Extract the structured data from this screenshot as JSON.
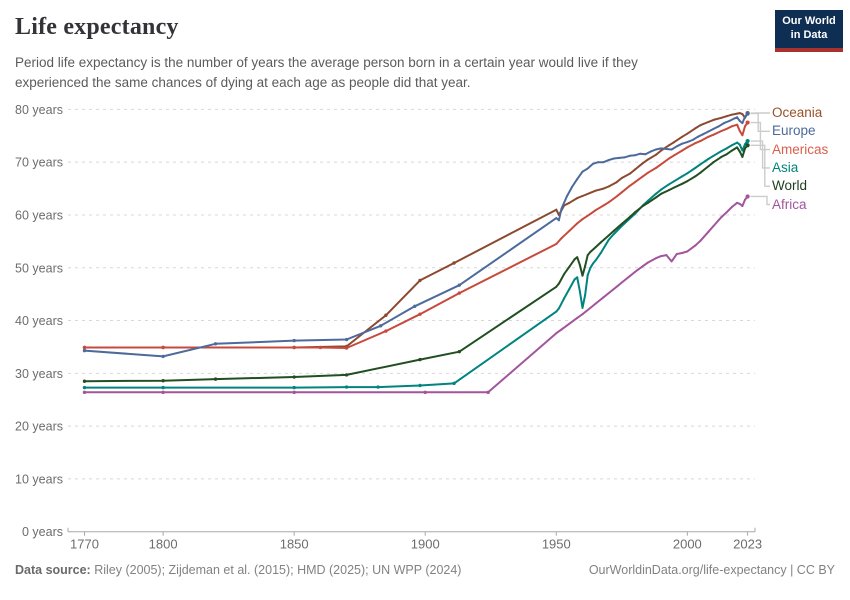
{
  "header": {
    "title": "Life expectancy",
    "subtitle": "Period life expectancy is the number of years the average person born in a certain year would live if they experienced the same chances of dying at each age as people did that year.",
    "logo_line1": "Our World",
    "logo_line2": "in Data"
  },
  "footer": {
    "source_label": "Data source:",
    "source_text": " Riley (2005); Zijdeman et al. (2015); HMD (2025); UN WPP (2024)",
    "right_text": "OurWorldinData.org/life-expectancy | CC BY"
  },
  "chart_data": {
    "type": "line",
    "title": "Life expectancy",
    "x_axis": {
      "ticks": [
        1770,
        1800,
        1850,
        1900,
        1950,
        2000,
        2023
      ],
      "range": [
        1765,
        2026
      ]
    },
    "y_axis": {
      "ticks": [
        0,
        10,
        20,
        30,
        40,
        50,
        60,
        70,
        80
      ],
      "tick_suffix": " years",
      "range": [
        0,
        80
      ],
      "grid": "dashed"
    },
    "legend_position": "right",
    "colors": {
      "grid": "#d8d8d8",
      "axis": "#a8a8a8",
      "tick_text": "#6d6d6d",
      "connector": "#cccccc"
    },
    "series": [
      {
        "name": "Oceania",
        "color": "#8B4A2F",
        "label_color": "#9A5129",
        "points": [
          [
            1770,
            34.9
          ],
          [
            1800,
            34.9
          ],
          [
            1850,
            34.9
          ],
          [
            1870,
            35.1
          ],
          [
            1885,
            41.0
          ],
          [
            1898,
            47.6
          ],
          [
            1911,
            50.9
          ],
          [
            1950,
            61.0
          ],
          [
            1951,
            60.0
          ],
          [
            1953,
            61.8
          ],
          [
            1955,
            62.3
          ],
          [
            1958,
            63.2
          ],
          [
            1960,
            63.6
          ],
          [
            1963,
            64.2
          ],
          [
            1965,
            64.6
          ],
          [
            1968,
            65.0
          ],
          [
            1970,
            65.4
          ],
          [
            1973,
            66.2
          ],
          [
            1975,
            67.0
          ],
          [
            1978,
            67.8
          ],
          [
            1980,
            68.6
          ],
          [
            1983,
            69.8
          ],
          [
            1985,
            70.5
          ],
          [
            1988,
            71.4
          ],
          [
            1990,
            72.2
          ],
          [
            1993,
            73.2
          ],
          [
            1995,
            73.8
          ],
          [
            1998,
            74.8
          ],
          [
            2000,
            75.4
          ],
          [
            2003,
            76.4
          ],
          [
            2005,
            77.0
          ],
          [
            2008,
            77.6
          ],
          [
            2010,
            78.0
          ],
          [
            2013,
            78.4
          ],
          [
            2015,
            78.7
          ],
          [
            2017,
            79.0
          ],
          [
            2019,
            79.2
          ],
          [
            2020,
            79.3
          ],
          [
            2021,
            79.1
          ],
          [
            2022,
            78.4
          ],
          [
            2023,
            79.3
          ]
        ]
      },
      {
        "name": "Europe",
        "color": "#4C6A9C",
        "label_color": "#4C6A9C",
        "points": [
          [
            1770,
            34.3
          ],
          [
            1800,
            33.2
          ],
          [
            1820,
            35.6
          ],
          [
            1850,
            36.2
          ],
          [
            1870,
            36.4
          ],
          [
            1883,
            39.0
          ],
          [
            1896,
            42.7
          ],
          [
            1913,
            46.7
          ],
          [
            1950,
            59.4
          ],
          [
            1951,
            59.0
          ],
          [
            1952,
            61.2
          ],
          [
            1954,
            63.5
          ],
          [
            1956,
            65.3
          ],
          [
            1958,
            66.8
          ],
          [
            1960,
            68.2
          ],
          [
            1962,
            68.8
          ],
          [
            1964,
            69.7
          ],
          [
            1966,
            70.0
          ],
          [
            1968,
            70.0
          ],
          [
            1970,
            70.4
          ],
          [
            1972,
            70.7
          ],
          [
            1974,
            70.8
          ],
          [
            1976,
            70.9
          ],
          [
            1978,
            71.2
          ],
          [
            1980,
            71.3
          ],
          [
            1982,
            71.6
          ],
          [
            1984,
            71.5
          ],
          [
            1986,
            72.0
          ],
          [
            1988,
            72.4
          ],
          [
            1990,
            72.6
          ],
          [
            1992,
            72.5
          ],
          [
            1994,
            72.4
          ],
          [
            1996,
            73.0
          ],
          [
            1998,
            73.5
          ],
          [
            2000,
            73.8
          ],
          [
            2002,
            74.2
          ],
          [
            2004,
            74.8
          ],
          [
            2006,
            75.3
          ],
          [
            2008,
            75.8
          ],
          [
            2010,
            76.3
          ],
          [
            2012,
            76.8
          ],
          [
            2014,
            77.4
          ],
          [
            2016,
            77.8
          ],
          [
            2018,
            78.3
          ],
          [
            2019,
            78.5
          ],
          [
            2020,
            77.8
          ],
          [
            2021,
            77.4
          ],
          [
            2022,
            78.6
          ],
          [
            2023,
            79.2
          ]
        ]
      },
      {
        "name": "Americas",
        "color": "#C74A3C",
        "label_color": "#D95F4B",
        "points": [
          [
            1770,
            34.9
          ],
          [
            1800,
            34.9
          ],
          [
            1850,
            34.9
          ],
          [
            1860,
            34.9
          ],
          [
            1870,
            34.8
          ],
          [
            1885,
            38.0
          ],
          [
            1898,
            41.2
          ],
          [
            1913,
            45.2
          ],
          [
            1950,
            54.5
          ],
          [
            1952,
            55.6
          ],
          [
            1955,
            57.0
          ],
          [
            1958,
            58.4
          ],
          [
            1960,
            59.2
          ],
          [
            1963,
            60.2
          ],
          [
            1965,
            60.9
          ],
          [
            1968,
            61.8
          ],
          [
            1970,
            62.4
          ],
          [
            1973,
            63.5
          ],
          [
            1975,
            64.3
          ],
          [
            1978,
            65.5
          ],
          [
            1980,
            66.2
          ],
          [
            1983,
            67.3
          ],
          [
            1985,
            68.0
          ],
          [
            1988,
            68.9
          ],
          [
            1990,
            69.6
          ],
          [
            1993,
            70.7
          ],
          [
            1995,
            71.3
          ],
          [
            1998,
            72.2
          ],
          [
            2000,
            72.8
          ],
          [
            2003,
            73.6
          ],
          [
            2005,
            74.0
          ],
          [
            2008,
            74.8
          ],
          [
            2010,
            75.2
          ],
          [
            2013,
            75.9
          ],
          [
            2015,
            76.3
          ],
          [
            2017,
            76.8
          ],
          [
            2019,
            77.1
          ],
          [
            2020,
            75.9
          ],
          [
            2021,
            75.1
          ],
          [
            2022,
            76.8
          ],
          [
            2023,
            77.5
          ]
        ]
      },
      {
        "name": "Asia",
        "color": "#00847E",
        "label_color": "#00847E",
        "points": [
          [
            1770,
            27.3
          ],
          [
            1800,
            27.3
          ],
          [
            1850,
            27.3
          ],
          [
            1870,
            27.4
          ],
          [
            1882,
            27.4
          ],
          [
            1898,
            27.7
          ],
          [
            1911,
            28.1
          ],
          [
            1950,
            41.7
          ],
          [
            1951,
            42.3
          ],
          [
            1953,
            44.2
          ],
          [
            1955,
            46.0
          ],
          [
            1957,
            47.8
          ],
          [
            1958,
            48.2
          ],
          [
            1959,
            45.5
          ],
          [
            1960,
            42.4
          ],
          [
            1961,
            44.8
          ],
          [
            1962,
            48.6
          ],
          [
            1963,
            50.0
          ],
          [
            1964,
            50.8
          ],
          [
            1965,
            51.4
          ],
          [
            1967,
            52.8
          ],
          [
            1970,
            55.3
          ],
          [
            1972,
            56.4
          ],
          [
            1975,
            57.9
          ],
          [
            1978,
            59.3
          ],
          [
            1980,
            60.2
          ],
          [
            1983,
            61.8
          ],
          [
            1985,
            62.7
          ],
          [
            1988,
            64.0
          ],
          [
            1990,
            64.8
          ],
          [
            1993,
            65.8
          ],
          [
            1995,
            66.4
          ],
          [
            1998,
            67.3
          ],
          [
            2000,
            67.9
          ],
          [
            2003,
            68.9
          ],
          [
            2005,
            69.6
          ],
          [
            2008,
            70.6
          ],
          [
            2010,
            71.2
          ],
          [
            2013,
            72.1
          ],
          [
            2015,
            72.6
          ],
          [
            2017,
            73.2
          ],
          [
            2019,
            73.7
          ],
          [
            2020,
            73.3
          ],
          [
            2021,
            72.2
          ],
          [
            2022,
            73.4
          ],
          [
            2023,
            74.0
          ]
        ]
      },
      {
        "name": "World",
        "color": "#224F22",
        "label_color": "#1D3D1D",
        "points": [
          [
            1770,
            28.5
          ],
          [
            1800,
            28.6
          ],
          [
            1820,
            28.9
          ],
          [
            1850,
            29.3
          ],
          [
            1870,
            29.7
          ],
          [
            1898,
            32.6
          ],
          [
            1913,
            34.1
          ],
          [
            1950,
            46.4
          ],
          [
            1951,
            47.0
          ],
          [
            1953,
            48.8
          ],
          [
            1955,
            50.2
          ],
          [
            1957,
            51.6
          ],
          [
            1958,
            52.0
          ],
          [
            1959,
            50.5
          ],
          [
            1960,
            48.5
          ],
          [
            1961,
            50.3
          ],
          [
            1962,
            52.4
          ],
          [
            1963,
            53.0
          ],
          [
            1965,
            53.9
          ],
          [
            1967,
            54.8
          ],
          [
            1970,
            56.1
          ],
          [
            1972,
            57.0
          ],
          [
            1975,
            58.3
          ],
          [
            1978,
            59.6
          ],
          [
            1980,
            60.5
          ],
          [
            1983,
            61.7
          ],
          [
            1985,
            62.3
          ],
          [
            1988,
            63.3
          ],
          [
            1990,
            64.0
          ],
          [
            1993,
            64.7
          ],
          [
            1995,
            65.2
          ],
          [
            1998,
            65.9
          ],
          [
            2000,
            66.4
          ],
          [
            2003,
            67.3
          ],
          [
            2005,
            68.0
          ],
          [
            2008,
            69.2
          ],
          [
            2010,
            70.0
          ],
          [
            2013,
            71.0
          ],
          [
            2015,
            71.5
          ],
          [
            2017,
            72.2
          ],
          [
            2019,
            72.8
          ],
          [
            2020,
            72.0
          ],
          [
            2021,
            71.0
          ],
          [
            2022,
            72.6
          ],
          [
            2023,
            73.2
          ]
        ]
      },
      {
        "name": "Africa",
        "color": "#A2559C",
        "label_color": "#A2559C",
        "points": [
          [
            1770,
            26.4
          ],
          [
            1800,
            26.4
          ],
          [
            1850,
            26.4
          ],
          [
            1900,
            26.4
          ],
          [
            1924,
            26.4
          ],
          [
            1950,
            37.6
          ],
          [
            1952,
            38.3
          ],
          [
            1955,
            39.4
          ],
          [
            1958,
            40.5
          ],
          [
            1960,
            41.2
          ],
          [
            1963,
            42.4
          ],
          [
            1965,
            43.2
          ],
          [
            1968,
            44.4
          ],
          [
            1970,
            45.2
          ],
          [
            1973,
            46.4
          ],
          [
            1975,
            47.2
          ],
          [
            1978,
            48.4
          ],
          [
            1980,
            49.2
          ],
          [
            1983,
            50.3
          ],
          [
            1985,
            51.0
          ],
          [
            1988,
            51.8
          ],
          [
            1990,
            52.2
          ],
          [
            1992,
            52.4
          ],
          [
            1994,
            51.2
          ],
          [
            1996,
            52.6
          ],
          [
            1998,
            52.8
          ],
          [
            2000,
            53.1
          ],
          [
            2003,
            54.2
          ],
          [
            2005,
            55.1
          ],
          [
            2008,
            56.8
          ],
          [
            2010,
            57.9
          ],
          [
            2013,
            59.6
          ],
          [
            2015,
            60.5
          ],
          [
            2017,
            61.5
          ],
          [
            2019,
            62.3
          ],
          [
            2020,
            62.1
          ],
          [
            2021,
            61.7
          ],
          [
            2022,
            62.9
          ],
          [
            2023,
            63.5
          ]
        ]
      }
    ]
  }
}
